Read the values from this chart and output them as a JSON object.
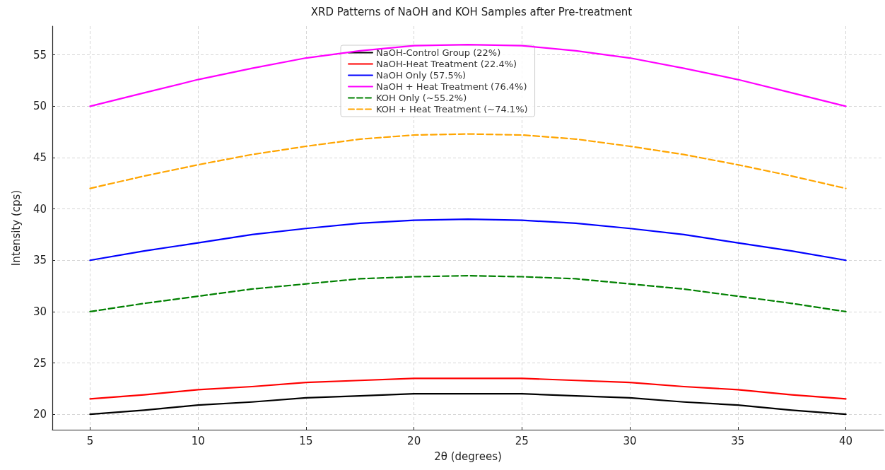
{
  "chart_data": {
    "type": "line",
    "title": "XRD Patterns of NaOH and KOH Samples after Pre-treatment",
    "xlabel": "2θ (degrees)",
    "ylabel": "Intensity (cps)",
    "x": [
      5,
      7.5,
      10,
      12.5,
      15,
      17.5,
      20,
      22.5,
      25,
      27.5,
      30,
      32.5,
      35,
      37.5,
      40
    ],
    "series": [
      {
        "name": "NaOH-Control Group (22%)",
        "color": "#000000",
        "line_style": "solid",
        "values": [
          20,
          20.4,
          20.9,
          21.2,
          21.6,
          21.8,
          22,
          22,
          22,
          21.8,
          21.6,
          21.2,
          20.9,
          20.4,
          20
        ]
      },
      {
        "name": "NaOH-Heat Treatment (22.4%)",
        "color": "#ff0000",
        "line_style": "solid",
        "values": [
          21.5,
          21.9,
          22.4,
          22.7,
          23.1,
          23.3,
          23.5,
          23.5,
          23.5,
          23.3,
          23.1,
          22.7,
          22.4,
          21.9,
          21.5
        ]
      },
      {
        "name": "NaOH Only (57.5%)",
        "color": "#0000ff",
        "line_style": "solid",
        "values": [
          35,
          35.9,
          36.7,
          37.5,
          38.1,
          38.6,
          38.9,
          39,
          38.9,
          38.6,
          38.1,
          37.5,
          36.7,
          35.9,
          35
        ]
      },
      {
        "name": "NaOH + Heat Treatment (76.4%)",
        "color": "#ff00ff",
        "line_style": "solid",
        "values": [
          50,
          51.3,
          52.6,
          53.7,
          54.7,
          55.4,
          55.9,
          56,
          55.9,
          55.4,
          54.7,
          53.7,
          52.6,
          51.3,
          50
        ]
      },
      {
        "name": "KOH Only (~55.2%)",
        "color": "#008000",
        "line_style": "dashed",
        "values": [
          30,
          30.8,
          31.5,
          32.2,
          32.7,
          33.2,
          33.4,
          33.5,
          33.4,
          33.2,
          32.7,
          32.2,
          31.5,
          30.8,
          30
        ]
      },
      {
        "name": "KOH + Heat Treatment (~74.1%)",
        "color": "#ffa500",
        "line_style": "dashed",
        "values": [
          42,
          43.2,
          44.3,
          45.3,
          46.1,
          46.8,
          47.2,
          47.3,
          47.2,
          46.8,
          46.1,
          45.3,
          44.3,
          43.2,
          42
        ]
      }
    ],
    "xlim": [
      3.25,
      41.75
    ],
    "xticks": [
      5,
      10,
      15,
      20,
      25,
      30,
      35,
      40
    ],
    "ylim": [
      18.5,
      57.8
    ],
    "yticks": [
      20,
      25,
      30,
      35,
      40,
      45,
      50,
      55
    ],
    "grid": true,
    "legend": "top",
    "marker": "none"
  }
}
